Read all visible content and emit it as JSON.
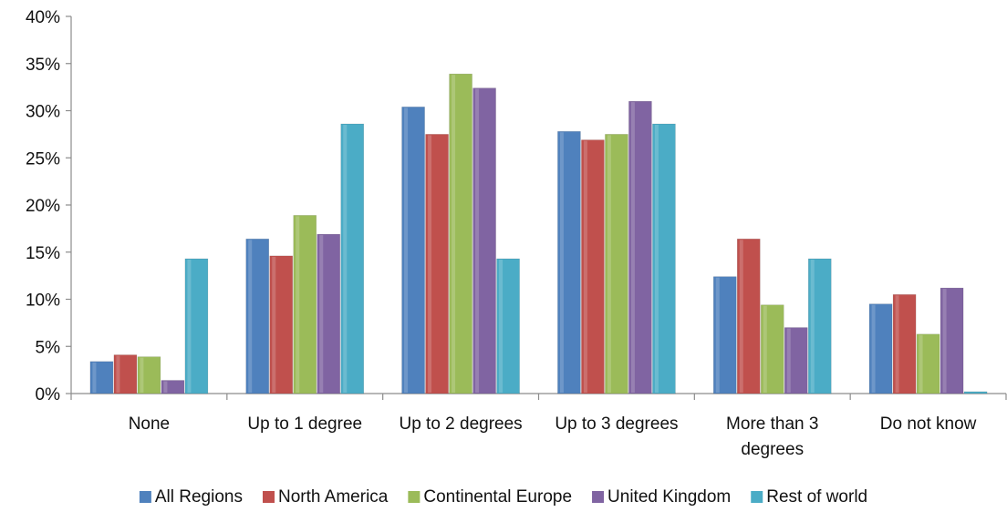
{
  "chart_data": {
    "type": "bar",
    "title": "",
    "xlabel": "",
    "ylabel": "",
    "ylim": [
      0,
      40
    ],
    "y_tick_step": 5,
    "y_tick_format": "percent",
    "grid": false,
    "legend_position": "bottom",
    "categories": [
      [
        "None"
      ],
      [
        "Up to 1 degree"
      ],
      [
        "Up to 2 degrees"
      ],
      [
        "Up to 3 degrees"
      ],
      [
        "More than 3",
        "degrees"
      ],
      [
        "Do not know"
      ]
    ],
    "series": [
      {
        "name": "All Regions",
        "color": "#4F81BD",
        "values": [
          3.4,
          16.4,
          30.4,
          27.8,
          12.4,
          9.5
        ]
      },
      {
        "name": "North America",
        "color": "#C0504D",
        "values": [
          4.1,
          14.6,
          27.5,
          26.9,
          16.4,
          10.5
        ]
      },
      {
        "name": "Continental Europe",
        "color": "#9BBB59",
        "values": [
          3.9,
          18.9,
          33.9,
          27.5,
          9.4,
          6.3
        ]
      },
      {
        "name": "United Kingdom",
        "color": "#8064A2",
        "values": [
          1.4,
          16.9,
          32.4,
          31.0,
          7.0,
          11.2
        ]
      },
      {
        "name": "Rest of world",
        "color": "#4BACC6",
        "values": [
          14.3,
          28.6,
          14.3,
          28.6,
          14.3,
          0.2
        ]
      }
    ]
  }
}
